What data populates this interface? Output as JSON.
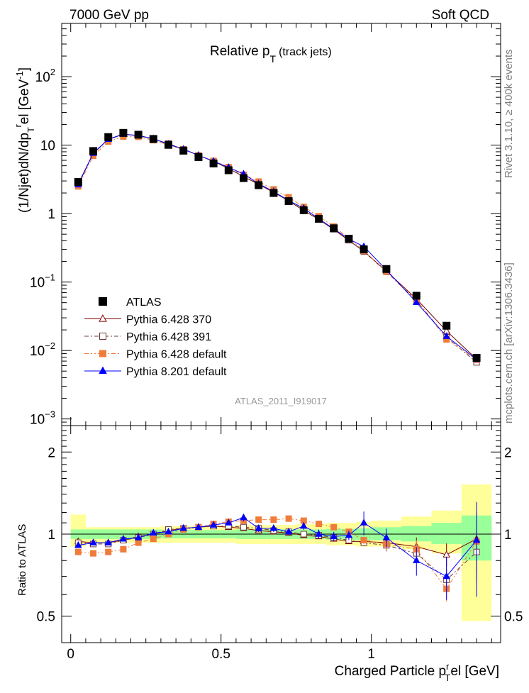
{
  "header": {
    "left": "7000 GeV pp",
    "right": "Soft QCD"
  },
  "main_plot": {
    "title_main": "Relative p",
    "title_sub": "T",
    "title_suffix": "(track jets)",
    "ylabel": "(1/Njet)dN/dp",
    "ylabel_sub": "T",
    "ylabel_sup": "r",
    "ylabel_end": "el [GeV",
    "ylabel_exp": "-1",
    "ylabel_close": "]",
    "analysis_tag": "ATLAS_2011_I919017"
  },
  "ratio_plot": {
    "ylabel": "Ratio to ATLAS",
    "xlabel_pre": "Charged Particle p",
    "xlabel_sup": "r",
    "xlabel_sub": "T",
    "xlabel_post": "el [GeV]"
  },
  "side_labels": {
    "rivet": "Rivet 3.1.10, ≥ 400k events",
    "mcplots": "mcplots.cern.ch [arXiv:1306.3436]"
  },
  "ticks": {
    "x": [
      "0",
      "0.5",
      "1"
    ],
    "main_y": [
      {
        "base": "10",
        "exp": "2"
      },
      {
        "base": "10",
        "exp": ""
      },
      {
        "base": "1",
        "exp": ""
      },
      {
        "base": "10",
        "exp": "−1"
      },
      {
        "base": "10",
        "exp": "−2"
      },
      {
        "base": "10",
        "exp": "−3"
      }
    ],
    "ratio_y": [
      "2",
      "1",
      "0.5"
    ]
  },
  "chart_data": {
    "type": "line",
    "x_range": [
      -0.03,
      1.43
    ],
    "main_ylim": [
      0.0008,
      600
    ],
    "main_yscale": "log",
    "ratio_ylim": [
      0.4,
      2.5
    ],
    "ratio_yscale": "log",
    "bins": [
      {
        "x": 0.025,
        "w": 0.025
      },
      {
        "x": 0.075,
        "w": 0.025
      },
      {
        "x": 0.125,
        "w": 0.025
      },
      {
        "x": 0.175,
        "w": 0.025
      },
      {
        "x": 0.225,
        "w": 0.025
      },
      {
        "x": 0.275,
        "w": 0.025
      },
      {
        "x": 0.325,
        "w": 0.025
      },
      {
        "x": 0.375,
        "w": 0.025
      },
      {
        "x": 0.425,
        "w": 0.025
      },
      {
        "x": 0.475,
        "w": 0.025
      },
      {
        "x": 0.525,
        "w": 0.025
      },
      {
        "x": 0.575,
        "w": 0.025
      },
      {
        "x": 0.625,
        "w": 0.025
      },
      {
        "x": 0.675,
        "w": 0.025
      },
      {
        "x": 0.725,
        "w": 0.025
      },
      {
        "x": 0.775,
        "w": 0.025
      },
      {
        "x": 0.825,
        "w": 0.025
      },
      {
        "x": 0.875,
        "w": 0.025
      },
      {
        "x": 0.925,
        "w": 0.025
      },
      {
        "x": 0.975,
        "w": 0.025
      },
      {
        "x": 1.05,
        "w": 0.05
      },
      {
        "x": 1.15,
        "w": 0.05
      },
      {
        "x": 1.25,
        "w": 0.05
      },
      {
        "x": 1.35,
        "w": 0.05
      }
    ],
    "data": {
      "name": "ATLAS",
      "values": [
        2.9,
        8.2,
        13.1,
        15.1,
        14.2,
        12.3,
        10.1,
        8.3,
        6.7,
        5.4,
        4.3,
        3.3,
        2.6,
        2.0,
        1.52,
        1.12,
        0.84,
        0.61,
        0.43,
        0.3,
        0.155,
        0.063,
        0.023,
        0.0078
      ],
      "band_inner": [
        [
          0.96,
          1.04
        ],
        [
          0.96,
          1.04
        ],
        [
          0.96,
          1.04
        ],
        [
          0.96,
          1.04
        ],
        [
          0.96,
          1.04
        ],
        [
          0.96,
          1.04
        ],
        [
          0.965,
          1.035
        ],
        [
          0.965,
          1.035
        ],
        [
          0.965,
          1.035
        ],
        [
          0.965,
          1.035
        ],
        [
          0.965,
          1.035
        ],
        [
          0.96,
          1.04
        ],
        [
          0.96,
          1.04
        ],
        [
          0.96,
          1.04
        ],
        [
          0.96,
          1.04
        ],
        [
          0.96,
          1.04
        ],
        [
          0.96,
          1.04
        ],
        [
          0.955,
          1.045
        ],
        [
          0.955,
          1.045
        ],
        [
          0.95,
          1.05
        ],
        [
          0.95,
          1.06
        ],
        [
          0.94,
          1.07
        ],
        [
          0.92,
          1.1
        ],
        [
          0.8,
          1.17
        ]
      ],
      "band_outer": [
        [
          0.9,
          1.18
        ],
        [
          0.93,
          1.06
        ],
        [
          0.93,
          1.06
        ],
        [
          0.93,
          1.06
        ],
        [
          0.93,
          1.06
        ],
        [
          0.93,
          1.06
        ],
        [
          0.93,
          1.07
        ],
        [
          0.93,
          1.07
        ],
        [
          0.93,
          1.07
        ],
        [
          0.93,
          1.07
        ],
        [
          0.93,
          1.07
        ],
        [
          0.92,
          1.08
        ],
        [
          0.92,
          1.08
        ],
        [
          0.92,
          1.08
        ],
        [
          0.92,
          1.08
        ],
        [
          0.92,
          1.09
        ],
        [
          0.92,
          1.09
        ],
        [
          0.91,
          1.1
        ],
        [
          0.91,
          1.1
        ],
        [
          0.9,
          1.11
        ],
        [
          0.9,
          1.12
        ],
        [
          0.88,
          1.16
        ],
        [
          0.85,
          1.22
        ],
        [
          0.48,
          1.52
        ]
      ],
      "errors": [
        0.02,
        0.02,
        0.02,
        0.02,
        0.02,
        0.02,
        0.02,
        0.02,
        0.02,
        0.02,
        0.02,
        0.02,
        0.02,
        0.02,
        0.02,
        0.02,
        0.02,
        0.02,
        0.02,
        0.03,
        0.04,
        0.07,
        0.12,
        0.2
      ],
      "color": "#000000"
    },
    "series": [
      {
        "name": "Pythia 6.428 370",
        "color": "#800000",
        "marker": "open-triangle",
        "dash": "",
        "ratio": [
          0.94,
          0.93,
          0.93,
          0.95,
          0.98,
          1.0,
          1.03,
          1.05,
          1.06,
          1.07,
          1.06,
          1.05,
          1.03,
          1.02,
          1.01,
          0.99,
          0.98,
          0.96,
          0.94,
          0.94,
          0.93,
          0.9,
          0.84,
          0.96
        ],
        "errors": [
          0.02,
          0.02,
          0.02,
          0.02,
          0.02,
          0.02,
          0.02,
          0.02,
          0.02,
          0.02,
          0.02,
          0.02,
          0.02,
          0.02,
          0.02,
          0.02,
          0.02,
          0.02,
          0.02,
          0.03,
          0.05,
          0.08,
          0.1,
          0.25
        ]
      },
      {
        "name": "Pythia 6.428 391",
        "color": "#6b3b3b",
        "marker": "open-square",
        "dash": "6,3,2,3",
        "ratio": [
          0.93,
          0.92,
          0.92,
          0.95,
          0.97,
          1.0,
          1.04,
          1.05,
          1.06,
          1.07,
          1.07,
          1.06,
          1.05,
          1.03,
          1.02,
          1.0,
          0.99,
          0.97,
          0.95,
          0.93,
          0.91,
          0.85,
          0.68,
          0.86
        ],
        "errors": [
          0.02,
          0.02,
          0.02,
          0.02,
          0.02,
          0.02,
          0.02,
          0.02,
          0.02,
          0.02,
          0.02,
          0.02,
          0.02,
          0.02,
          0.02,
          0.02,
          0.02,
          0.02,
          0.02,
          0.03,
          0.05,
          0.08,
          0.1,
          0.2
        ]
      },
      {
        "name": "Pythia 6.428 default",
        "color": "#f07c3a",
        "marker": "filled-square",
        "dash": "6,3,2,3,2,3",
        "ratio": [
          0.86,
          0.85,
          0.86,
          0.88,
          0.93,
          0.96,
          1.0,
          1.04,
          1.06,
          1.09,
          1.11,
          1.12,
          1.13,
          1.13,
          1.14,
          1.12,
          1.09,
          1.06,
          1.02,
          0.95,
          0.92,
          0.88,
          0.63,
          0.94
        ],
        "errors": [
          0.02,
          0.02,
          0.02,
          0.02,
          0.02,
          0.02,
          0.02,
          0.02,
          0.02,
          0.02,
          0.02,
          0.02,
          0.02,
          0.02,
          0.02,
          0.02,
          0.02,
          0.02,
          0.02,
          0.03,
          0.05,
          0.08,
          0.1,
          0.3
        ]
      },
      {
        "name": "Pythia 8.201 default",
        "color": "#0000ff",
        "marker": "filled-triangle",
        "dash": "",
        "ratio": [
          0.91,
          0.93,
          0.93,
          0.96,
          0.97,
          1.01,
          1.02,
          1.05,
          1.06,
          1.08,
          1.1,
          1.15,
          1.05,
          1.05,
          1.02,
          1.07,
          1.0,
          0.98,
          0.99,
          1.1,
          0.97,
          0.8,
          0.7,
          0.95
        ],
        "errors": [
          0.02,
          0.02,
          0.02,
          0.02,
          0.02,
          0.02,
          0.02,
          0.02,
          0.02,
          0.02,
          0.02,
          0.03,
          0.03,
          0.03,
          0.03,
          0.03,
          0.04,
          0.04,
          0.04,
          0.1,
          0.08,
          0.12,
          0.18,
          0.38
        ]
      }
    ]
  }
}
